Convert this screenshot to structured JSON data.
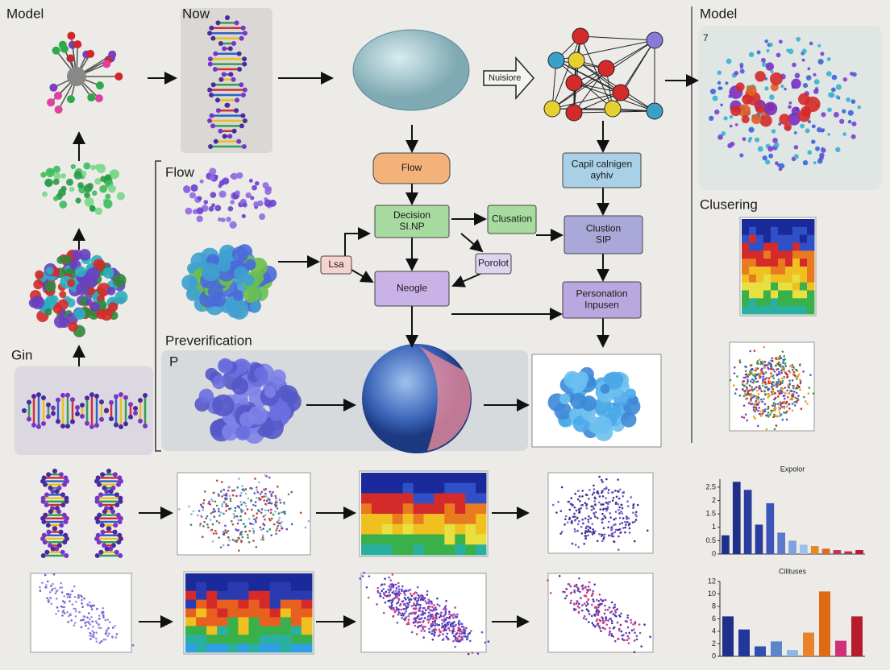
{
  "labels": {
    "model_left": "Model",
    "now": "Now",
    "nuisiore": "Nuisiore",
    "model_right": "Model",
    "seven": "7",
    "flow_left": "Flow",
    "preverification": "Preverification",
    "p": "P",
    "gin": "Gin",
    "clustering": "Clusering"
  },
  "nodes": [
    {
      "lines": [
        "Flow"
      ],
      "color": "#f3b27a"
    },
    {
      "lines": [
        "Decision",
        "SI.NP"
      ],
      "color": "#a8dba0"
    },
    {
      "lines": [
        "Lsa"
      ],
      "color": "#f6d3cf"
    },
    {
      "lines": [
        "Neogle"
      ],
      "color": "#c9b2e6"
    },
    {
      "lines": [
        "Clusation"
      ],
      "color": "#a8dba0"
    },
    {
      "lines": [
        "Porolot"
      ],
      "color": "#dcd5f0"
    },
    {
      "lines": [
        "Capil calnigen",
        "ayhiv"
      ],
      "color": "#a9d0e6"
    },
    {
      "lines": [
        "Clustion",
        "SIP"
      ],
      "color": "#a9a8d8"
    },
    {
      "lines": [
        "Personation",
        "Inpusen"
      ],
      "color": "#b9a8e0"
    }
  ],
  "bar_charts": [
    {
      "type": "bar",
      "title": "Expolor",
      "values": [
        0.7,
        2.7,
        2.4,
        1.1,
        1.9,
        0.8,
        0.5,
        0.35,
        0.3,
        0.2,
        0.15,
        0.1,
        0.15
      ],
      "colors": [
        "#1f2f8a",
        "#1f2f8a",
        "#2b3d9c",
        "#2b3d9c",
        "#3d55b8",
        "#5a78cc",
        "#7fa1de",
        "#9fc0ea",
        "#e08a2a",
        "#e06a20",
        "#c8325a",
        "#b8304a",
        "#b02030"
      ],
      "ylim": [
        0,
        2.8
      ],
      "yticks": [
        0,
        0.5,
        1,
        1.5,
        2,
        2.5
      ]
    },
    {
      "type": "bar",
      "title": "Cilituses",
      "values": [
        6.4,
        4.3,
        1.6,
        2.4,
        1.0,
        3.8,
        10.4,
        2.5,
        6.4
      ],
      "colors": [
        "#1f2f8a",
        "#22379a",
        "#2f4fb0",
        "#5d85cc",
        "#8fb4e6",
        "#e8832a",
        "#e06a14",
        "#d0307a",
        "#b81c2a"
      ],
      "ylim": [
        0,
        12
      ],
      "yticks": [
        0,
        2,
        4,
        6,
        8,
        10,
        12
      ]
    }
  ]
}
